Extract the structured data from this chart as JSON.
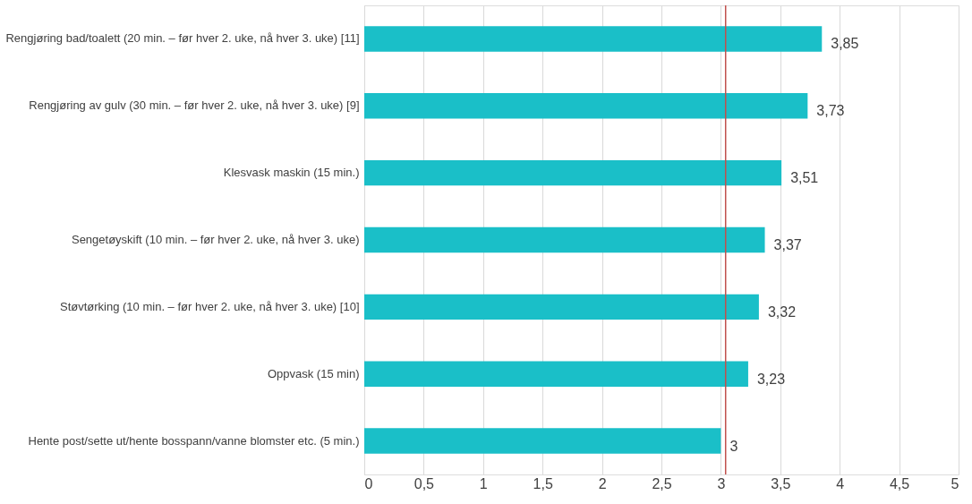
{
  "chart_data": {
    "type": "bar",
    "orientation": "horizontal",
    "categories": [
      "Rengjøring bad/toalett (20 min. – før hver 2. uke, nå hver 3. uke) [11]",
      "Rengjøring av gulv (30 min. – før hver 2. uke, nå hver 3. uke) [9]",
      "Klesvask maskin (15 min.)",
      "Sengetøyskift (10 min. – før hver 2. uke, nå hver 3. uke)",
      "Støvtørking (10 min. – før hver 2. uke, nå hver 3. uke) [10]",
      "Oppvask (15 min)",
      "Hente post/sette ut/hente bosspann/vanne blomster etc. (5 min.)"
    ],
    "values": [
      3.85,
      3.73,
      3.51,
      3.37,
      3.32,
      3.23,
      3
    ],
    "value_labels": [
      "3,85",
      "3,73",
      "3,51",
      "3,37",
      "3,32",
      "3,23",
      "3"
    ],
    "color": "#1abfc8",
    "xlim": [
      0,
      5
    ],
    "xticks": [
      0,
      {
        "value": 0.5,
        "label": "0,5"
      },
      1,
      {
        "value": 1.5,
        "label": "1,5"
      },
      2,
      {
        "value": 2.5,
        "label": "2,5"
      },
      3,
      {
        "value": 3.5,
        "label": "3,5"
      },
      4,
      {
        "value": 4.5,
        "label": "4,5"
      },
      5
    ],
    "grid": "x",
    "ref_lines": [
      {
        "axis": "x",
        "value": 3.04,
        "color": "#c0504d"
      }
    ]
  }
}
